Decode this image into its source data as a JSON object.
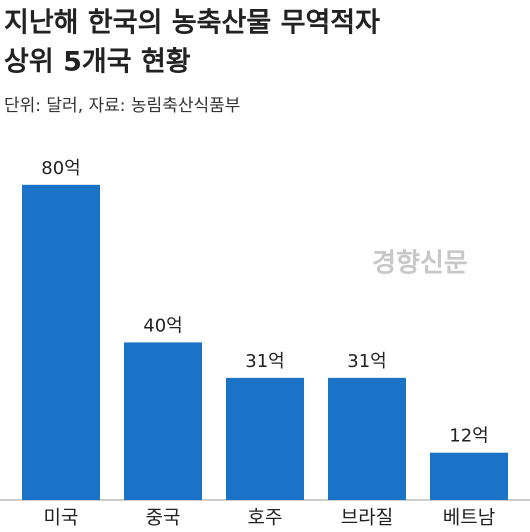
{
  "chart_data": {
    "type": "bar",
    "title": [
      "지난해 한국의 농축산물 무역적자",
      "상위 5개국 현황"
    ],
    "subtitle": "단위: 달러, 자료: 농림축산식품부",
    "watermark": "경향신문",
    "categories": [
      "미국",
      "중국",
      "호주",
      "브라질",
      "베트남"
    ],
    "values": [
      80,
      40,
      31,
      31,
      12
    ],
    "value_labels": [
      "80억",
      "40억",
      "31억",
      "31억",
      "12억"
    ],
    "color": "#1b73c8"
  }
}
